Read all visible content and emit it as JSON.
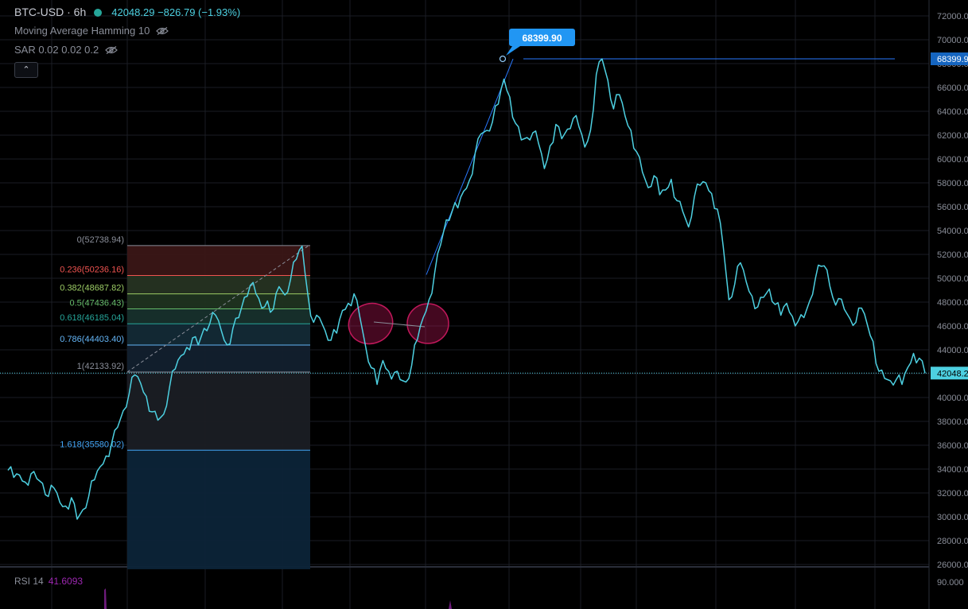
{
  "header": {
    "symbol": "BTC-USD · 6h",
    "values": "42048.29 −826.79 (−1.93%)",
    "indicators": [
      {
        "label": "Moving Average Hamming 10"
      },
      {
        "label": "SAR 0.02 0.02 0.2"
      }
    ],
    "collapse_icon": "chevron-up-icon"
  },
  "rsi": {
    "label": "RSI 14",
    "value": "41.6093"
  },
  "colors": {
    "background": "#000000",
    "price_line": "#4dd0e1",
    "grid": "#1a1d24",
    "callout": "#2196f3",
    "trend": "#2979ff",
    "ellipse": "#c2185b"
  },
  "chart_data": {
    "type": "line",
    "y_axis": {
      "ticks": [
        "72000.00",
        "70000.00",
        "68000.00",
        "66000.00",
        "64000.00",
        "62000.00",
        "60000.00",
        "58000.00",
        "56000.00",
        "54000.00",
        "52000.00",
        "50000.00",
        "48000.00",
        "46000.00",
        "44000.00",
        "42000.00",
        "40000.00",
        "38000.00",
        "36000.00",
        "34000.00",
        "32000.00",
        "30000.00",
        "28000.00",
        "26000.00"
      ],
      "ylim": [
        25600,
        72800
      ],
      "rsi_tick": "90.000"
    },
    "last_price": 42048.29,
    "last_price_label": "42048.2",
    "high_price_label": "68399.9",
    "callout": {
      "label": "68399.90",
      "value": 68399.9
    },
    "series": [
      {
        "values": [
          33900,
          33300,
          33500,
          32900,
          33600,
          33200,
          32800,
          31700,
          32400,
          31200,
          30900,
          31600,
          29800,
          30600,
          31700,
          33100,
          34200,
          35100,
          36200,
          37500,
          38900,
          40300,
          41900,
          41200,
          40100,
          38800,
          38100,
          38600,
          40800,
          42400,
          43500,
          44200,
          45000,
          44400,
          45800,
          46200,
          46900,
          45600,
          44400,
          45800,
          46700,
          48400,
          49400,
          48700,
          47500,
          48100,
          47400,
          49300,
          48600,
          49900,
          51600,
          52700,
          48600,
          46300,
          46700,
          45600,
          44800,
          45400,
          47300,
          47900,
          48700,
          46800,
          44300,
          42500,
          41100,
          43100,
          42200,
          42100,
          41500,
          41300,
          42700,
          44900,
          46700,
          48200,
          50500,
          52800,
          54900,
          55600,
          55900,
          57300,
          58200,
          60500,
          62100,
          62400,
          63100,
          64600,
          66700,
          65200,
          63000,
          61600,
          61800,
          62200,
          61300,
          59200,
          61100,
          62900,
          61700,
          62500,
          63400,
          62700,
          61000,
          62400,
          67100,
          68400,
          66600,
          64200,
          65400,
          63600,
          62400,
          60600,
          58900,
          57600,
          58600,
          57000,
          57400,
          58300,
          56500,
          55600,
          54300,
          56800,
          57800,
          58000,
          57100,
          55800,
          52700,
          48200,
          49500,
          51300,
          49700,
          48500,
          47600,
          48400,
          49100,
          47800,
          46900,
          47900,
          46800,
          46400,
          46700,
          48100,
          50000,
          51000,
          50700,
          48400,
          48300,
          47400,
          46600,
          46300,
          47500,
          46100,
          44700,
          42200,
          41600,
          41400,
          41500,
          41100,
          42500,
          43700,
          43300,
          42048.29
        ]
      }
    ],
    "fibonacci": {
      "levels": [
        {
          "ratio": "0",
          "price": 52738.94,
          "label": "0(52738.94)",
          "color": "#8a8e99"
        },
        {
          "ratio": "0.236",
          "price": 50236.16,
          "label": "0.236(50236.16)",
          "color": "#ef5350"
        },
        {
          "ratio": "0.382",
          "price": 48687.82,
          "label": "0.382(48687.82)",
          "color": "#9ccc65"
        },
        {
          "ratio": "0.5",
          "price": 47436.43,
          "label": "0.5(47436.43)",
          "color": "#66bb6a"
        },
        {
          "ratio": "0.618",
          "price": 46185.04,
          "label": "0.618(46185.04)",
          "color": "#26a69a"
        },
        {
          "ratio": "0.786",
          "price": 44403.4,
          "label": "0.786(44403.40)",
          "color": "#64b5f6"
        },
        {
          "ratio": "1",
          "price": 42133.92,
          "label": "1(42133.92)",
          "color": "#8a8e99"
        },
        {
          "ratio": "1.618",
          "price": 35580.02,
          "label": "1.618(35580.02)",
          "color": "#42a5f5"
        }
      ],
      "bottom_price": 25600
    },
    "ellipses": [
      {
        "price": 46200
      },
      {
        "price": 46200
      }
    ],
    "trend_line": {
      "start_price": 50300,
      "end_price": 68399.9
    },
    "horizontal_line": {
      "price": 68399.9
    }
  }
}
